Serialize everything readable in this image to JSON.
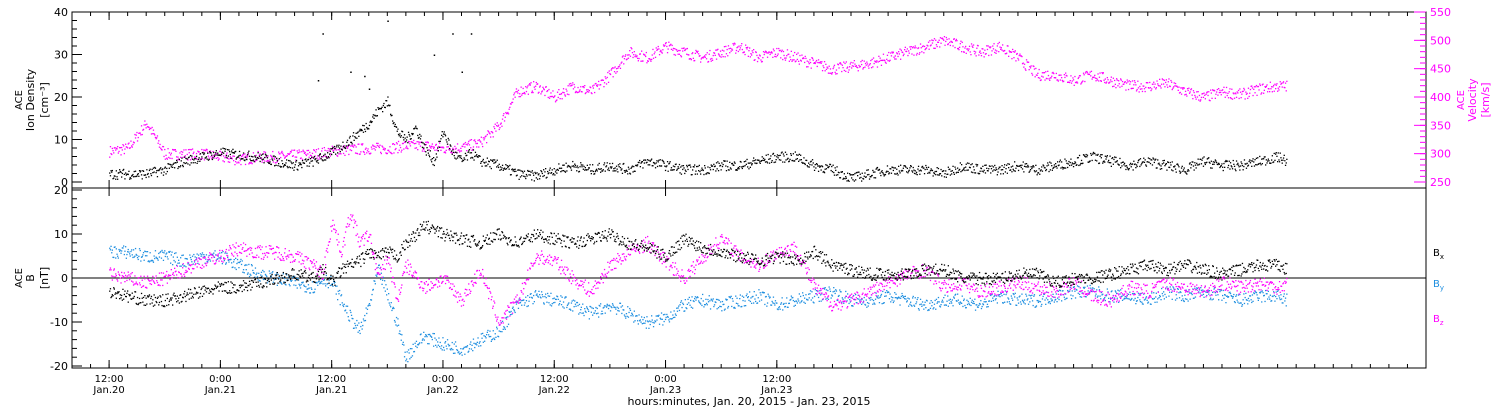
{
  "chart_data": [
    {
      "type": "scatter",
      "panel": "top",
      "ylabel_left": [
        "ACE",
        "Ion Density",
        "[cm⁻³]"
      ],
      "ylabel_right": [
        "ACE",
        "Velocity",
        "[km/s]"
      ],
      "ylim_left": [
        0,
        40
      ],
      "yticks_left": [
        "0",
        "10",
        "20",
        "30",
        "40"
      ],
      "ylim_right": [
        250,
        550
      ],
      "yticks_right": [
        "250",
        "300",
        "350",
        "400",
        "450",
        "500",
        "550"
      ],
      "series": [
        {
          "axis": "left",
          "color": "#000000",
          "x": [
            0,
            2,
            4,
            6,
            8,
            10,
            12,
            14,
            16,
            18,
            20,
            22,
            24,
            26,
            28,
            29,
            30,
            31,
            32,
            33,
            34,
            35,
            36,
            37,
            38,
            39,
            40,
            42,
            44,
            46,
            48,
            50,
            52,
            54,
            56,
            58,
            60,
            62,
            64,
            66,
            68,
            70,
            72,
            74,
            76,
            78,
            80,
            82,
            84,
            86,
            88,
            90,
            92,
            94,
            96,
            98,
            100,
            102,
            104,
            106,
            108,
            110,
            112,
            114,
            116,
            118,
            120,
            122,
            124,
            126,
            127
          ],
          "y": [
            2,
            2,
            2,
            3,
            5,
            6,
            7,
            6.5,
            6,
            5,
            4,
            5,
            7,
            10,
            14,
            17,
            19,
            12,
            10,
            13,
            8,
            5,
            12,
            7,
            5,
            7,
            5,
            4,
            2,
            1.5,
            3,
            4,
            3,
            4,
            3,
            5,
            4,
            3,
            3,
            4,
            4,
            5,
            6,
            6,
            4,
            3,
            1,
            2,
            3,
            3,
            3,
            2,
            4,
            3,
            3,
            4,
            3,
            4,
            5,
            6,
            5,
            4,
            5,
            4,
            3,
            5,
            4,
            4,
            5,
            6,
            5
          ]
        },
        {
          "axis": "right",
          "color": "#ff00ff",
          "x": [
            0,
            2,
            4,
            6,
            8,
            10,
            12,
            14,
            16,
            18,
            20,
            22,
            24,
            26,
            28,
            30,
            32,
            34,
            36,
            38,
            40,
            42,
            44,
            46,
            48,
            50,
            52,
            54,
            56,
            58,
            60,
            62,
            64,
            66,
            68,
            70,
            72,
            74,
            76,
            78,
            80,
            82,
            84,
            86,
            88,
            90,
            92,
            94,
            96,
            98,
            100,
            102,
            104,
            106,
            108,
            110,
            112,
            114,
            116,
            118,
            120,
            122,
            124,
            126,
            127
          ],
          "y": [
            305,
            310,
            355,
            300,
            300,
            300,
            295,
            290,
            295,
            295,
            298,
            300,
            305,
            308,
            310,
            310,
            315,
            315,
            310,
            312,
            320,
            350,
            410,
            420,
            400,
            420,
            410,
            440,
            480,
            470,
            490,
            480,
            470,
            480,
            490,
            470,
            480,
            470,
            460,
            450,
            455,
            460,
            470,
            480,
            490,
            500,
            490,
            480,
            490,
            470,
            440,
            440,
            430,
            440,
            430,
            420,
            420,
            425,
            410,
            400,
            410,
            405,
            415,
            420,
            420
          ]
        }
      ],
      "outlier_points_left": [
        [
          22.5,
          24
        ],
        [
          23,
          35
        ],
        [
          26,
          26
        ],
        [
          27.5,
          25
        ],
        [
          28,
          22
        ],
        [
          30,
          38
        ],
        [
          35,
          30
        ],
        [
          37,
          35
        ],
        [
          38,
          26
        ],
        [
          39,
          35
        ]
      ]
    },
    {
      "type": "scatter",
      "panel": "bottom",
      "ylabel_left": [
        "ACE",
        "B",
        "[nT]"
      ],
      "ylim": [
        -20,
        20
      ],
      "yticks": [
        "-20",
        "-10",
        "0",
        "10",
        "20"
      ],
      "series": [
        {
          "name": "B",
          "subscript": "x",
          "color": "#000000",
          "x": [
            0,
            2,
            4,
            6,
            8,
            10,
            12,
            14,
            16,
            18,
            20,
            22,
            23,
            24,
            25,
            26,
            27,
            28,
            29,
            30,
            31,
            32,
            34,
            36,
            38,
            40,
            42,
            44,
            46,
            48,
            50,
            52,
            54,
            56,
            58,
            60,
            62,
            64,
            66,
            68,
            70,
            72,
            74,
            76,
            78,
            80,
            82,
            84,
            86,
            88,
            90,
            92,
            94,
            96,
            98,
            100,
            102,
            104,
            106,
            108,
            110,
            112,
            114,
            116,
            118,
            120,
            122,
            124,
            126,
            127
          ],
          "y": [
            -3,
            -4,
            -5,
            -5,
            -4,
            -3,
            -2,
            -2,
            -1,
            0,
            1,
            0,
            2,
            -1,
            2,
            3,
            4,
            6,
            5,
            6,
            5,
            8,
            12,
            10,
            9,
            8,
            10,
            8,
            10,
            9,
            8,
            9,
            10,
            8,
            7,
            5,
            9,
            7,
            6,
            5,
            4,
            5,
            4,
            6,
            3,
            2,
            1,
            1,
            1,
            2,
            2,
            0,
            0,
            0,
            1,
            1,
            -1,
            0,
            0,
            1,
            2,
            3,
            2,
            3,
            2,
            1,
            2,
            3,
            3,
            2
          ]
        },
        {
          "name": "B",
          "subscript": "y",
          "color": "#1f8fe0",
          "x": [
            0,
            2,
            4,
            6,
            8,
            10,
            12,
            14,
            16,
            18,
            20,
            22,
            23,
            24,
            25,
            26,
            27,
            28,
            29,
            30,
            31,
            32,
            33,
            34,
            36,
            38,
            40,
            42,
            44,
            46,
            48,
            50,
            52,
            54,
            56,
            58,
            60,
            62,
            64,
            66,
            68,
            70,
            72,
            74,
            76,
            78,
            80,
            82,
            84,
            86,
            88,
            90,
            92,
            94,
            96,
            98,
            100,
            102,
            104,
            106,
            108,
            110,
            112,
            114,
            116,
            118,
            120,
            122,
            124,
            126,
            127
          ],
          "y": [
            6,
            6,
            5,
            5,
            4,
            5,
            5,
            3,
            1,
            0,
            -1,
            -2,
            0,
            -1,
            -5,
            -9,
            -12,
            -6,
            2,
            -4,
            -10,
            -18,
            -15,
            -13,
            -15,
            -16,
            -14,
            -12,
            -6,
            -4,
            -5,
            -6,
            -8,
            -6,
            -8,
            -10,
            -9,
            -6,
            -5,
            -6,
            -5,
            -4,
            -6,
            -5,
            -4,
            -3,
            -5,
            -5,
            -4,
            -5,
            -6,
            -5,
            -5,
            -6,
            -4,
            -5,
            -5,
            -4,
            -3,
            -3,
            -4,
            -4,
            -5,
            -3,
            -4,
            -3,
            -4,
            -5,
            -4,
            -4,
            -5
          ]
        },
        {
          "name": "B",
          "subscript": "z",
          "color": "#ff00ff",
          "x": [
            0,
            2,
            4,
            6,
            8,
            10,
            12,
            14,
            16,
            18,
            20,
            22,
            23,
            24,
            25,
            26,
            27,
            28,
            29,
            30,
            31,
            32,
            34,
            36,
            38,
            40,
            42,
            44,
            46,
            48,
            50,
            52,
            54,
            56,
            58,
            60,
            62,
            64,
            66,
            68,
            70,
            72,
            74,
            76,
            78,
            80,
            82,
            84,
            86,
            88,
            90,
            92,
            94,
            96,
            98,
            100,
            102,
            104,
            106,
            108,
            110,
            112,
            114,
            116,
            118,
            120,
            122,
            124,
            126,
            127
          ],
          "y": [
            1,
            0,
            -1,
            0,
            2,
            4,
            5,
            7,
            6,
            6,
            5,
            3,
            1,
            13,
            6,
            15,
            8,
            10,
            0,
            5,
            -5,
            3,
            -2,
            0,
            -5,
            2,
            -10,
            -5,
            5,
            4,
            0,
            -3,
            3,
            6,
            8,
            4,
            0,
            5,
            9,
            5,
            3,
            6,
            7,
            -2,
            -6,
            -5,
            -3,
            -1,
            1,
            2,
            -2,
            -1,
            -3,
            -2,
            -1,
            -2,
            -3,
            -1,
            -4,
            -5,
            -2,
            -3,
            -1,
            -2,
            -3,
            -1,
            -2,
            -1,
            -2,
            -1
          ]
        }
      ]
    }
  ],
  "x_axis": {
    "xlim": [
      -4,
      142
    ],
    "ticks": [
      {
        "x": 0,
        "hour": "12:00",
        "date": "Jan.20"
      },
      {
        "x": 12,
        "hour": "0:00",
        "date": "Jan.21"
      },
      {
        "x": 24,
        "hour": "12:00",
        "date": "Jan.21"
      },
      {
        "x": 36,
        "hour": "0:00",
        "date": "Jan.22"
      },
      {
        "x": 48,
        "hour": "12:00",
        "date": "Jan.22"
      },
      {
        "x": 60,
        "hour": "0:00",
        "date": "Jan.23"
      },
      {
        "x": 72,
        "hour": "12:00",
        "date": "Jan.23"
      }
    ],
    "label": "hours:minutes, Jan. 20, 2015 - Jan. 23, 2015"
  }
}
